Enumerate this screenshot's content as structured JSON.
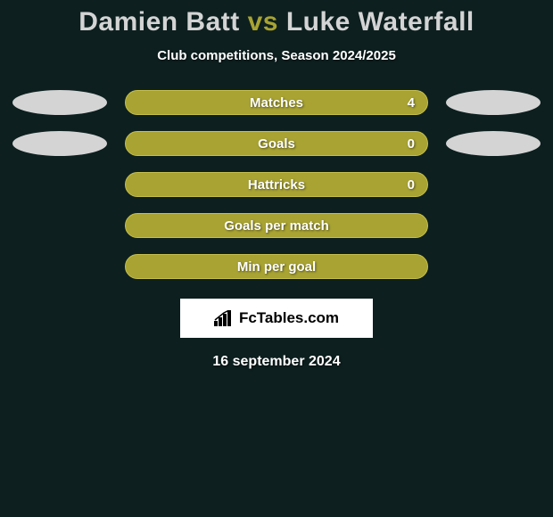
{
  "title": {
    "player1": "Damien Batt",
    "vs": "vs",
    "player2": "Luke Waterfall",
    "player1_color": "#d4d4d4",
    "vs_color": "#a8a332",
    "player2_color": "#d4d4d4"
  },
  "subtitle": "Club competitions, Season 2024/2025",
  "background_color": "#0d1f1f",
  "bar_color": "#a8a332",
  "bar_border_color": "#c5bf4a",
  "ellipse_left_color": "#d4d4d4",
  "ellipse_right_color": "#d4d4d4",
  "rows": [
    {
      "label": "Matches",
      "value": "4",
      "show_left_ellipse": true,
      "show_right_ellipse": true,
      "show_value": true
    },
    {
      "label": "Goals",
      "value": "0",
      "show_left_ellipse": true,
      "show_right_ellipse": true,
      "show_value": true
    },
    {
      "label": "Hattricks",
      "value": "0",
      "show_left_ellipse": false,
      "show_right_ellipse": false,
      "show_value": true
    },
    {
      "label": "Goals per match",
      "value": "",
      "show_left_ellipse": false,
      "show_right_ellipse": false,
      "show_value": false
    },
    {
      "label": "Min per goal",
      "value": "",
      "show_left_ellipse": false,
      "show_right_ellipse": false,
      "show_value": false
    }
  ],
  "branding": "FcTables.com",
  "date": "16 september 2024",
  "text_color": "#ffffff"
}
